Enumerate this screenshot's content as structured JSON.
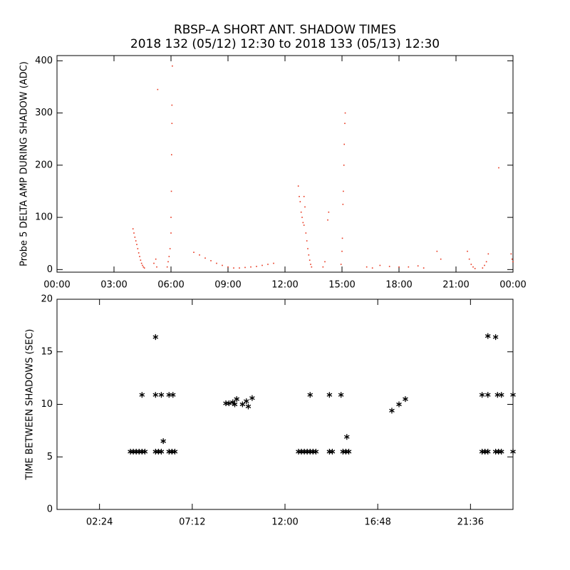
{
  "chart_data": [
    {
      "type": "scatter",
      "marker": "dot",
      "color": "#e8341c",
      "title": "RBSP–A SHORT ANT. SHADOW TIMES",
      "subtitle": "2018 132 (05/12) 12:30 to 2018 133 (05/13) 12:30",
      "ylabel": "Probe 5 DELTA AMP DURING SHADOW (ADC)",
      "xlim": [
        0,
        24
      ],
      "ylim": [
        -5,
        410
      ],
      "xticks": [
        {
          "value": 0,
          "label": "00:00"
        },
        {
          "value": 3,
          "label": "03:00"
        },
        {
          "value": 6,
          "label": "06:00"
        },
        {
          "value": 9,
          "label": "09:00"
        },
        {
          "value": 12,
          "label": "12:00"
        },
        {
          "value": 15,
          "label": "15:00"
        },
        {
          "value": 18,
          "label": "18:00"
        },
        {
          "value": 21,
          "label": "21:00"
        },
        {
          "value": 24,
          "label": "00:00"
        }
      ],
      "yticks": [
        0,
        100,
        200,
        300,
        400
      ],
      "x": [
        4.0,
        4.05,
        4.1,
        4.15,
        4.2,
        4.25,
        4.3,
        4.35,
        4.4,
        4.45,
        4.5,
        4.55,
        4.6,
        5.1,
        5.2,
        5.3,
        5.25,
        5.8,
        5.85,
        5.9,
        5.95,
        6.0,
        6.0,
        6.02,
        6.03,
        6.05,
        6.05,
        6.07,
        7.2,
        7.5,
        7.8,
        8.1,
        8.4,
        8.7,
        9.0,
        9.3,
        9.6,
        9.9,
        10.2,
        10.5,
        10.8,
        11.1,
        11.4,
        12.7,
        12.75,
        12.8,
        12.85,
        12.9,
        12.95,
        13.0,
        13.05,
        13.0,
        13.1,
        13.15,
        13.2,
        13.25,
        13.3,
        13.35,
        13.4,
        14.0,
        14.1,
        14.25,
        14.3,
        14.95,
        15.0,
        15.02,
        15.05,
        15.07,
        15.1,
        15.12,
        15.15,
        15.17,
        16.3,
        16.6,
        17.0,
        17.5,
        18.0,
        18.5,
        19.0,
        19.3,
        20.0,
        20.2,
        21.6,
        21.7,
        21.8,
        21.9,
        22.0,
        22.4,
        22.5,
        22.6,
        22.7,
        23.25,
        23.9,
        23.95,
        24.0
      ],
      "values": [
        78,
        70,
        62,
        55,
        48,
        40,
        32,
        25,
        18,
        12,
        8,
        5,
        3,
        12,
        20,
        345,
        5,
        5,
        15,
        25,
        40,
        70,
        100,
        150,
        220,
        280,
        315,
        390,
        33,
        28,
        22,
        17,
        12,
        8,
        5,
        3,
        3,
        4,
        5,
        6,
        8,
        10,
        12,
        160,
        140,
        130,
        110,
        100,
        90,
        85,
        120,
        140,
        70,
        55,
        40,
        28,
        18,
        10,
        5,
        5,
        15,
        95,
        110,
        10,
        35,
        60,
        125,
        150,
        200,
        240,
        280,
        300,
        5,
        3,
        8,
        6,
        5,
        5,
        7,
        3,
        35,
        20,
        35,
        20,
        10,
        5,
        2,
        3,
        8,
        15,
        30,
        195,
        30,
        20,
        15
      ]
    },
    {
      "type": "scatter",
      "marker": "asterisk",
      "color": "#000000",
      "ylabel": "TIME BETWEEN SHADOWS (SEC)",
      "xlim": [
        0.2,
        23.8
      ],
      "ylim": [
        0,
        20
      ],
      "xticks": [
        {
          "value": 2.4,
          "label": "02:24"
        },
        {
          "value": 7.2,
          "label": "07:12"
        },
        {
          "value": 12,
          "label": "12:00"
        },
        {
          "value": 16.8,
          "label": "16:48"
        },
        {
          "value": 21.6,
          "label": "21:36"
        }
      ],
      "yticks": [
        0,
        5,
        10,
        15,
        20
      ],
      "x": [
        4.0,
        4.15,
        4.3,
        4.45,
        4.6,
        4.75,
        5.3,
        5.45,
        5.6,
        6.0,
        6.15,
        6.3,
        12.7,
        12.85,
        13.0,
        13.15,
        13.3,
        13.45,
        13.6,
        14.3,
        14.45,
        15.0,
        15.15,
        15.3,
        22.2,
        22.35,
        22.5,
        22.9,
        23.05,
        23.2,
        23.8,
        4.6,
        5.3,
        5.6,
        6.0,
        6.2,
        13.3,
        14.3,
        14.9,
        22.2,
        22.5,
        23.0,
        23.2,
        23.8,
        5.3,
        22.5,
        22.9,
        5.7,
        15.2,
        8.94,
        9.1,
        9.3,
        9.4,
        9.5,
        9.8,
        10.0,
        10.1,
        10.3,
        17.53,
        17.9,
        18.23
      ],
      "values": [
        5.5,
        5.5,
        5.5,
        5.5,
        5.5,
        5.5,
        5.5,
        5.5,
        5.5,
        5.5,
        5.5,
        5.5,
        5.5,
        5.5,
        5.5,
        5.5,
        5.5,
        5.5,
        5.5,
        5.5,
        5.5,
        5.5,
        5.5,
        5.5,
        5.5,
        5.5,
        5.5,
        5.5,
        5.5,
        5.5,
        5.5,
        10.9,
        10.9,
        10.9,
        10.9,
        10.9,
        10.9,
        10.9,
        10.9,
        10.9,
        10.9,
        10.9,
        10.9,
        10.9,
        16.4,
        16.5,
        16.4,
        6.5,
        6.9,
        10.1,
        10.1,
        10.2,
        10.0,
        10.5,
        10.0,
        10.3,
        9.8,
        10.6,
        9.4,
        10.0,
        10.5
      ]
    }
  ]
}
